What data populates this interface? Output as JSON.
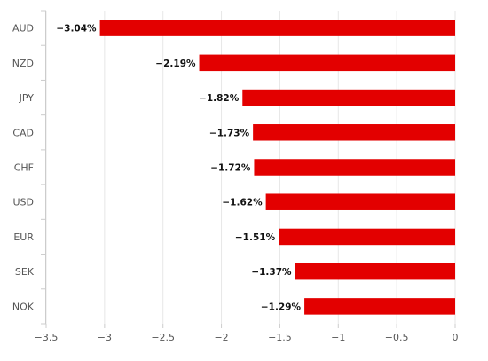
{
  "chart_data": {
    "type": "bar",
    "orientation": "horizontal",
    "categories": [
      "AUD",
      "NZD",
      "JPY",
      "CAD",
      "CHF",
      "USD",
      "EUR",
      "SEK",
      "NOK"
    ],
    "values": [
      -3.04,
      -2.19,
      -1.82,
      -1.73,
      -1.72,
      -1.62,
      -1.51,
      -1.37,
      -1.29
    ],
    "data_labels": [
      "−3.04%",
      "−2.19%",
      "−1.82%",
      "−1.73%",
      "−1.72%",
      "−1.62%",
      "−1.51%",
      "−1.37%",
      "−1.29%"
    ],
    "xlim": [
      -3.5,
      0
    ],
    "x_ticks": [
      -3.5,
      -3,
      -2.5,
      -2,
      -1.5,
      -1,
      -0.5,
      0
    ],
    "x_tick_labels": [
      "−3.5",
      "−3",
      "−2.5",
      "−2",
      "−1.5",
      "−1",
      "−0.5",
      "0"
    ],
    "bar_color": "#e30000",
    "grid": true,
    "title": "",
    "xlabel": "",
    "ylabel": ""
  }
}
